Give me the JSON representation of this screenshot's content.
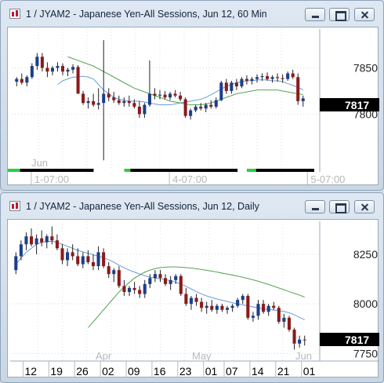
{
  "windows": [
    {
      "title": "1 / JYAM2 - Japanese Yen-All Sessions, Jun 12, 60 Min",
      "current_value": "7817"
    },
    {
      "title": "1 / JYAM2 - Japanese Yen-All Sessions, Jun 12, Daily",
      "current_value": "7817"
    }
  ],
  "chart_data": [
    {
      "type": "candlestick",
      "symbol": "JYAM2",
      "interval": "60 Min",
      "y_ticks": [
        7850,
        7800
      ],
      "ylim": [
        7740,
        7892
      ],
      "x_month_label": "Jun",
      "x_ticks": [
        "1-07:00",
        "4-07:00",
        "5-07:00"
      ],
      "x_tick_bars": [
        5,
        32,
        59
      ],
      "current_price": 7817,
      "grid": true,
      "legend": "none",
      "colors": {
        "up": "#1a3f8c",
        "down": "#8b1a1a",
        "ma_fast": "#5b8ed8",
        "ma_slow": "#3f9a3a"
      },
      "candles": [
        [
          7835,
          7840,
          7830,
          7838
        ],
        [
          7838,
          7844,
          7832,
          7834
        ],
        [
          7834,
          7842,
          7830,
          7840
        ],
        [
          7840,
          7855,
          7838,
          7852
        ],
        [
          7852,
          7866,
          7848,
          7862
        ],
        [
          7862,
          7866,
          7846,
          7850
        ],
        [
          7850,
          7856,
          7840,
          7846
        ],
        [
          7846,
          7852,
          7842,
          7850
        ],
        [
          7850,
          7856,
          7846,
          7852
        ],
        [
          7852,
          7855,
          7842,
          7846
        ],
        [
          7846,
          7850,
          7841,
          7848
        ],
        [
          7848,
          7854,
          7844,
          7851
        ],
        [
          7851,
          7853,
          7822,
          7822
        ],
        [
          7822,
          7825,
          7810,
          7812
        ],
        [
          7812,
          7818,
          7806,
          7814
        ],
        [
          7814,
          7822,
          7808,
          7810
        ],
        [
          7810,
          7828,
          7805,
          7812
        ],
        [
          7812,
          7880,
          7750,
          7822
        ],
        [
          7822,
          7828,
          7814,
          7818
        ],
        [
          7818,
          7824,
          7812,
          7815
        ],
        [
          7815,
          7820,
          7810,
          7812
        ],
        [
          7812,
          7818,
          7808,
          7814
        ],
        [
          7814,
          7820,
          7808,
          7812
        ],
        [
          7812,
          7816,
          7806,
          7808
        ],
        [
          7808,
          7814,
          7796,
          7800
        ],
        [
          7800,
          7812,
          7796,
          7810
        ],
        [
          7810,
          7858,
          7808,
          7822
        ],
        [
          7822,
          7828,
          7816,
          7820
        ],
        [
          7820,
          7826,
          7816,
          7821
        ],
        [
          7821,
          7825,
          7816,
          7818
        ],
        [
          7818,
          7824,
          7815,
          7822
        ],
        [
          7822,
          7826,
          7818,
          7820
        ],
        [
          7820,
          7824,
          7814,
          7816
        ],
        [
          7816,
          7818,
          7796,
          7798
        ],
        [
          7798,
          7806,
          7794,
          7804
        ],
        [
          7804,
          7810,
          7802,
          7808
        ],
        [
          7808,
          7812,
          7804,
          7806
        ],
        [
          7806,
          7812,
          7802,
          7810
        ],
        [
          7810,
          7815,
          7806,
          7808
        ],
        [
          7808,
          7818,
          7806,
          7815
        ],
        [
          7815,
          7836,
          7814,
          7834
        ],
        [
          7834,
          7838,
          7822,
          7825
        ],
        [
          7825,
          7836,
          7822,
          7834
        ],
        [
          7834,
          7838,
          7826,
          7830
        ],
        [
          7830,
          7840,
          7828,
          7838
        ],
        [
          7838,
          7842,
          7832,
          7836
        ],
        [
          7836,
          7840,
          7832,
          7838
        ],
        [
          7838,
          7843,
          7834,
          7840
        ],
        [
          7840,
          7844,
          7836,
          7841
        ],
        [
          7841,
          7845,
          7836,
          7838
        ],
        [
          7838,
          7842,
          7834,
          7840
        ],
        [
          7840,
          7844,
          7835,
          7839
        ],
        [
          7839,
          7843,
          7834,
          7838
        ],
        [
          7838,
          7846,
          7836,
          7844
        ],
        [
          7844,
          7848,
          7838,
          7840
        ],
        [
          7840,
          7844,
          7810,
          7814
        ],
        [
          7814,
          7820,
          7808,
          7817
        ]
      ],
      "ma_fast": [
        7832,
        7836,
        7838,
        7840,
        7840,
        7841,
        7840,
        7838,
        7832,
        7826,
        7822,
        7818,
        7816,
        7815,
        7814,
        7814,
        7814,
        7813,
        7812,
        7811,
        7810,
        7810,
        7810,
        7811,
        7812,
        7813,
        7814,
        7815,
        7816,
        7818,
        7821,
        7824,
        7827,
        7830,
        7832,
        7834,
        7835,
        7836,
        7836,
        7837,
        7837,
        7837,
        7836,
        7836,
        7835,
        7833,
        7831,
        7829,
        7826
      ],
      "ma_slow": [
        7862,
        7860,
        7858,
        7856,
        7854,
        7852,
        7849,
        7846,
        7843,
        7840,
        7837,
        7834,
        7831,
        7828,
        7826,
        7824,
        7822,
        7820,
        7818,
        7816,
        7814,
        7813,
        7812,
        7811,
        7810,
        7810,
        7810,
        7811,
        7812,
        7814,
        7816,
        7818,
        7820,
        7822,
        7823,
        7824,
        7825,
        7826,
        7826,
        7826,
        7826,
        7826,
        7825,
        7824,
        7823,
        7822,
        7821
      ]
    },
    {
      "type": "candlestick",
      "symbol": "JYAM2",
      "interval": "Daily",
      "y_ticks": [
        8250,
        8000,
        7750
      ],
      "ylim": [
        7720,
        8400
      ],
      "x_month_labels": [
        "Apr",
        "May",
        "Jun"
      ],
      "x_ticks": [
        "12",
        "19",
        "26",
        "02",
        "09",
        "16",
        "23",
        "01",
        "07",
        "14",
        "21",
        "01"
      ],
      "current_price": 7817,
      "grid": true,
      "legend": "none",
      "colors": {
        "up": "#1a3f8c",
        "down": "#8b1a1a",
        "ma_fast": "#5b8ed8",
        "ma_slow": "#3f9a3a"
      },
      "candles": [
        [
          8170,
          8260,
          8150,
          8240
        ],
        [
          8240,
          8320,
          8220,
          8300
        ],
        [
          8300,
          8360,
          8270,
          8340
        ],
        [
          8340,
          8380,
          8290,
          8300
        ],
        [
          8300,
          8350,
          8250,
          8330
        ],
        [
          8330,
          8370,
          8290,
          8310
        ],
        [
          8310,
          8350,
          8280,
          8340
        ],
        [
          8340,
          8390,
          8300,
          8320
        ],
        [
          8320,
          8350,
          8270,
          8280
        ],
        [
          8280,
          8300,
          8200,
          8220
        ],
        [
          8220,
          8280,
          8190,
          8260
        ],
        [
          8260,
          8300,
          8220,
          8240
        ],
        [
          8240,
          8280,
          8190,
          8200
        ],
        [
          8200,
          8260,
          8180,
          8240
        ],
        [
          8240,
          8270,
          8200,
          8210
        ],
        [
          8210,
          8250,
          8170,
          8190
        ],
        [
          8190,
          8290,
          8170,
          8260
        ],
        [
          8260,
          8280,
          8180,
          8190
        ],
        [
          8190,
          8210,
          8130,
          8150
        ],
        [
          8150,
          8180,
          8110,
          8170
        ],
        [
          8170,
          8190,
          8080,
          8090
        ],
        [
          8090,
          8120,
          8040,
          8060
        ],
        [
          8060,
          8090,
          8040,
          8080
        ],
        [
          8080,
          8110,
          8050,
          8070
        ],
        [
          8070,
          8090,
          8030,
          8050
        ],
        [
          8050,
          8120,
          8030,
          8100
        ],
        [
          8100,
          8150,
          8080,
          8130
        ],
        [
          8130,
          8170,
          8110,
          8150
        ],
        [
          8150,
          8170,
          8110,
          8130
        ],
        [
          8130,
          8150,
          8090,
          8100
        ],
        [
          8100,
          8140,
          8070,
          8120
        ],
        [
          8120,
          8150,
          8100,
          8140
        ],
        [
          8140,
          8150,
          8040,
          8050
        ],
        [
          8050,
          8080,
          7990,
          8000
        ],
        [
          8000,
          8040,
          7970,
          8030
        ],
        [
          8030,
          8050,
          7990,
          8010
        ],
        [
          8010,
          8030,
          7960,
          7980
        ],
        [
          7980,
          8010,
          7950,
          7990
        ],
        [
          7990,
          8020,
          7960,
          7970
        ],
        [
          7970,
          8000,
          7950,
          7990
        ],
        [
          7990,
          8000,
          7960,
          7970
        ],
        [
          7970,
          7990,
          7950,
          7980
        ],
        [
          7980,
          8000,
          7960,
          7990
        ],
        [
          7990,
          8030,
          7980,
          8020
        ],
        [
          8020,
          8050,
          8000,
          8040
        ],
        [
          8040,
          8050,
          7920,
          7930
        ],
        [
          7930,
          7960,
          7910,
          7940
        ],
        [
          7940,
          8020,
          7920,
          8000
        ],
        [
          8000,
          8020,
          7950,
          7960
        ],
        [
          7960,
          8000,
          7940,
          7990
        ],
        [
          7990,
          8010,
          7970,
          7980
        ],
        [
          7980,
          7990,
          7900,
          7910
        ],
        [
          7910,
          7950,
          7880,
          7930
        ],
        [
          7930,
          7940,
          7860,
          7870
        ],
        [
          7870,
          7880,
          7770,
          7800
        ],
        [
          7800,
          7840,
          7780,
          7820
        ],
        [
          7820,
          7840,
          7790,
          7817
        ]
      ],
      "ma_fast": [
        8200,
        8230,
        8260,
        8280,
        8300,
        8310,
        8315,
        8315,
        8310,
        8300,
        8290,
        8280,
        8270,
        8262,
        8255,
        8247,
        8240,
        8232,
        8222,
        8210,
        8195,
        8182,
        8170,
        8160,
        8150,
        8142,
        8135,
        8130,
        8126,
        8122,
        8117,
        8110,
        8100,
        8088,
        8075,
        8062,
        8050,
        8040,
        8032,
        8025,
        8018,
        8012,
        8006,
        8000,
        7995,
        7990,
        7985,
        7980,
        7975,
        7972,
        7969,
        7966,
        7962,
        7955,
        7945,
        7932,
        7920
      ],
      "ma_slow": [
        7880,
        7910,
        7940,
        7970,
        8000,
        8030,
        8060,
        8085,
        8108,
        8130,
        8145,
        8160,
        8170,
        8178,
        8183,
        8185,
        8186,
        8186,
        8185,
        8183,
        8180,
        8177,
        8173,
        8169,
        8165,
        8160,
        8155,
        8150,
        8145,
        8140,
        8134,
        8128,
        8121,
        8114,
        8106,
        8098,
        8089,
        8080,
        8071,
        8062,
        8053,
        8044,
        8034
      ]
    }
  ]
}
